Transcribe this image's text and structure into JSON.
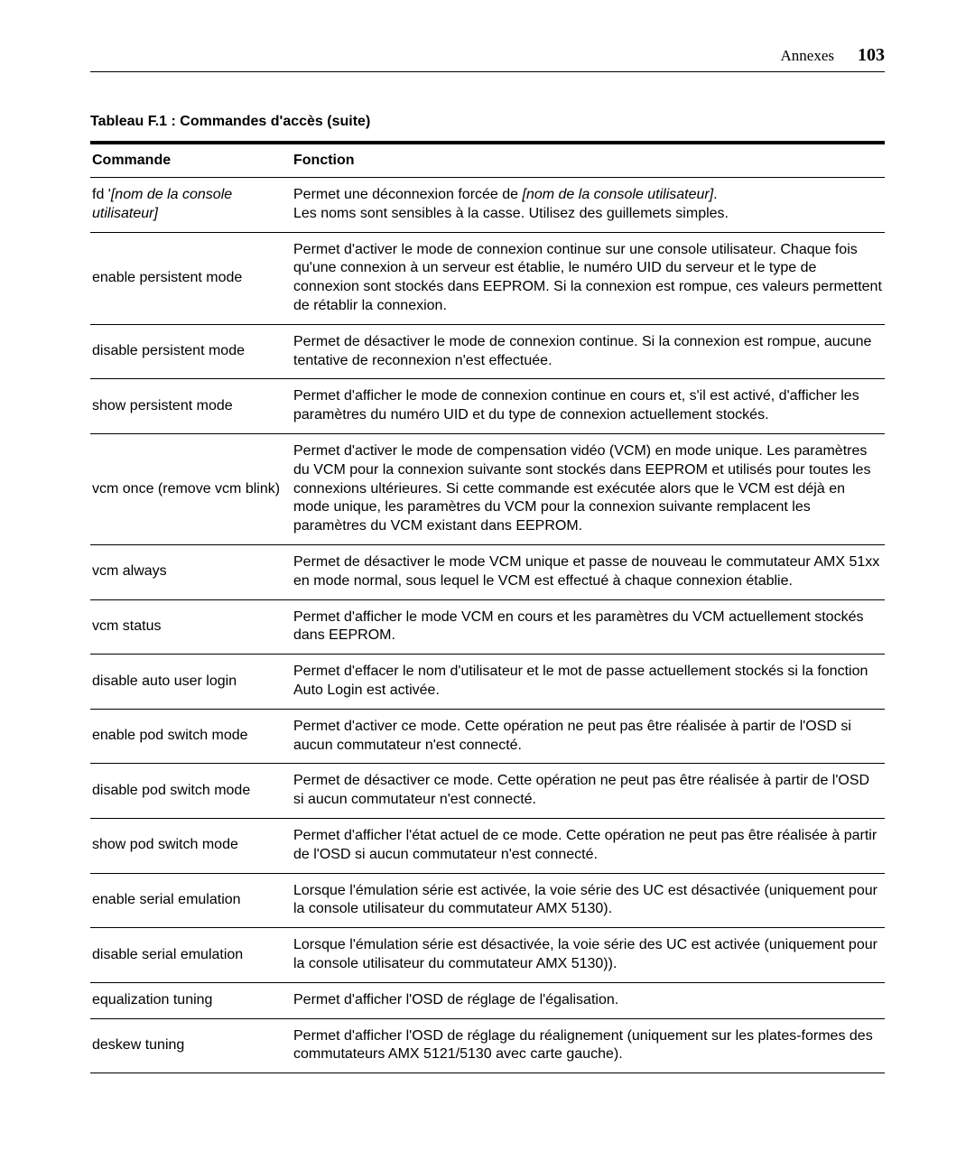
{
  "header": {
    "section": "Annexes",
    "page_number": "103"
  },
  "table": {
    "title": "Tableau F.1 : Commandes d'accès (suite)",
    "columns": {
      "commande": "Commande",
      "fonction": "Fonction"
    },
    "rows": [
      {
        "cmd_html": "fd '<span class=\"italic\">[nom de la console utilisateur]</span>",
        "fn_html": "Permet une déconnexion forcée de <span class=\"italic\">[nom de la console utilisateur]</span>.<br>Les noms sont sensibles à la casse. Utilisez des guillemets simples."
      },
      {
        "cmd_html": "enable persistent mode",
        "fn_html": "Permet d'activer le mode de connexion continue sur une console utilisateur. Chaque fois qu'une connexion à un serveur est établie, le numéro UID du serveur et le type de connexion sont stockés dans EEPROM. Si la connexion est rompue, ces valeurs permettent de rétablir la connexion."
      },
      {
        "cmd_html": "disable persistent mode",
        "fn_html": "Permet de désactiver le mode de connexion continue. Si la connexion est rompue, aucune tentative de reconnexion n'est effectuée."
      },
      {
        "cmd_html": "show persistent mode",
        "fn_html": "Permet d'afficher le mode de connexion continue en cours et, s'il est activé, d'afficher les paramètres du numéro UID et du type de connexion actuellement stockés."
      },
      {
        "cmd_html": "vcm once (remove vcm blink)",
        "fn_html": "Permet d'activer le mode de compensation vidéo (VCM) en mode unique. Les paramètres du VCM pour la connexion suivante sont stockés dans EEPROM et utilisés pour toutes les connexions ultérieures. Si cette commande est exécutée alors que le VCM est déjà en mode unique, les paramètres du VCM pour la connexion suivante remplacent les paramètres du VCM existant dans EEPROM."
      },
      {
        "cmd_html": "vcm always",
        "fn_html": "Permet de désactiver le mode VCM unique et passe de nouveau le commutateur AMX 51xx en mode normal, sous lequel le VCM est effectué à chaque connexion établie."
      },
      {
        "cmd_html": "vcm status",
        "fn_html": "Permet d'afficher le mode VCM en cours et les paramètres du VCM actuellement stockés dans EEPROM."
      },
      {
        "cmd_html": "disable auto user login",
        "fn_html": "Permet d'effacer le nom d'utilisateur et le mot de passe actuellement stockés si la fonction Auto Login est activée."
      },
      {
        "cmd_html": "enable pod switch mode",
        "fn_html": "Permet d'activer ce mode. Cette opération ne peut pas être réalisée à partir de l'OSD si aucun commutateur n'est connecté."
      },
      {
        "cmd_html": "disable pod switch mode",
        "fn_html": "Permet de désactiver ce mode. Cette opération ne peut pas être réalisée à partir de l'OSD si aucun commutateur n'est connecté."
      },
      {
        "cmd_html": "show pod switch mode",
        "fn_html": "Permet d'afficher l'état actuel de ce mode. Cette opération ne peut pas être réalisée à partir de l'OSD si aucun commutateur n'est connecté."
      },
      {
        "cmd_html": "enable serial emulation",
        "fn_html": "Lorsque l'émulation série est activée, la voie série des UC est désactivée (uniquement pour la console utilisateur du commutateur AMX 5130)."
      },
      {
        "cmd_html": "disable serial emulation",
        "fn_html": "Lorsque l'émulation série est désactivée, la voie série des UC est activée (uniquement pour la console utilisateur du commutateur AMX 5130))."
      },
      {
        "cmd_html": "equalization tuning",
        "fn_html": "Permet d'afficher l'OSD de réglage de l'égalisation."
      },
      {
        "cmd_html": "deskew tuning",
        "fn_html": "Permet d'afficher l'OSD de réglage du réalignement (uniquement sur les plates-formes des commutateurs AMX 5121/5130 avec carte gauche)."
      }
    ]
  }
}
